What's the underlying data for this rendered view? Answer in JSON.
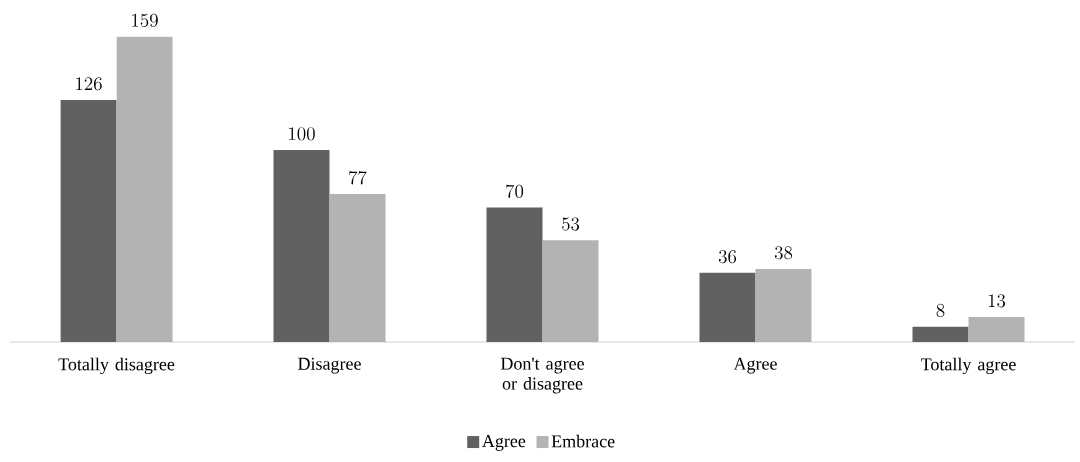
{
  "chart_data": {
    "type": "bar",
    "categories": [
      "Totally disagree",
      "Disagree",
      "Don't agree or disagree",
      "Agree",
      "Totally agree"
    ],
    "series": [
      {
        "name": "Agree",
        "color": "#616161",
        "values": [
          126,
          100,
          70,
          36,
          8
        ]
      },
      {
        "name": "Embrace",
        "color": "#b3b3b3",
        "values": [
          159,
          77,
          53,
          38,
          13
        ]
      }
    ],
    "data_labels": true,
    "legend": "bottom"
  }
}
